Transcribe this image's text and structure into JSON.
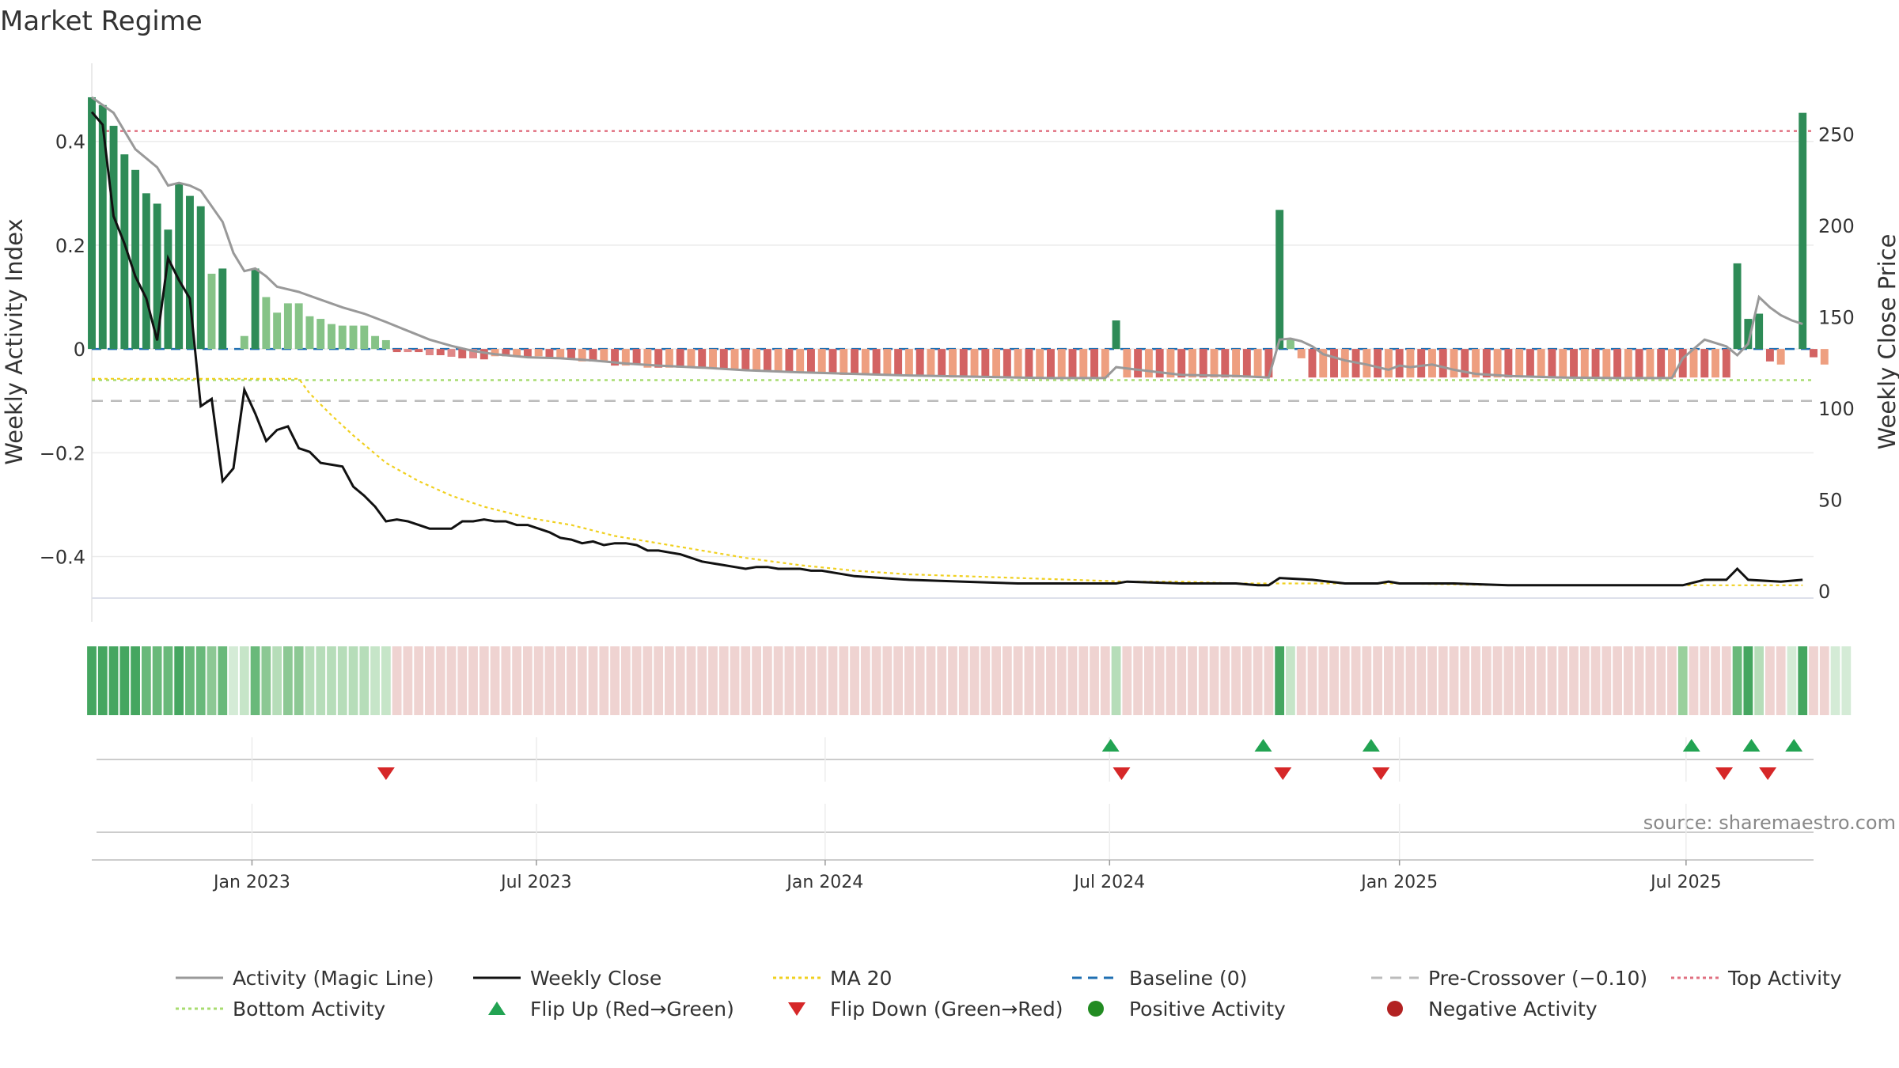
{
  "chart_data": {
    "type": "bar",
    "title": "Market Regime",
    "ylabel_left": "Weekly Activity Index",
    "ylabel_right": "Weekly Close Price",
    "source": "source: sharemaestro.com",
    "y_left_range": [
      -0.48,
      0.52
    ],
    "y_left_ticks": [
      {
        "v": 0.4,
        "label": "0.4"
      },
      {
        "v": 0.2,
        "label": "0.2"
      },
      {
        "v": 0.0,
        "label": "0"
      },
      {
        "v": -0.2,
        "label": "−0.2"
      },
      {
        "v": -0.4,
        "label": "−0.4"
      }
    ],
    "y_right_range": [
      -4,
      280
    ],
    "y_right_ticks": [
      {
        "v": 250,
        "label": "250"
      },
      {
        "v": 200,
        "label": "200"
      },
      {
        "v": 150,
        "label": "150"
      },
      {
        "v": 100,
        "label": "100"
      },
      {
        "v": 50,
        "label": "50"
      },
      {
        "v": 0,
        "label": "0"
      }
    ],
    "x_range": [
      0,
      158
    ],
    "x_ticks": [
      {
        "week": 14.7,
        "label": "Jan 2023"
      },
      {
        "week": 40.8,
        "label": "Jul 2023"
      },
      {
        "week": 67.3,
        "label": "Jan 2024"
      },
      {
        "week": 93.4,
        "label": "Jul 2024"
      },
      {
        "week": 120.0,
        "label": "Jan 2025"
      },
      {
        "week": 146.3,
        "label": "Jul 2025"
      }
    ],
    "reference_lines": {
      "top": 0.42,
      "bottom": -0.06,
      "pre_crossover": -0.1,
      "baseline": 0.0
    },
    "series": [
      {
        "name": "Activity (Magic Line)",
        "color": "#999999",
        "kind": "left"
      },
      {
        "name": "Weekly Close",
        "color": "#111111",
        "kind": "right"
      },
      {
        "name": "MA 20",
        "color": "#f0d020",
        "kind": "right"
      }
    ],
    "strong_threshold": 0.15,
    "colors": {
      "pos_strong": "#2e8b57",
      "pos_weak": "#86c387",
      "neg_strong": "#d36363",
      "neg_weak": "#ee9f80",
      "top_line": "#e07080",
      "bottom_line": "#a8dc70",
      "pre_line": "#bbbbbb",
      "baseline": "#1f6fb2",
      "flip_up": "#22a352",
      "flip_down": "#d62728",
      "positive_dot": "#228b22",
      "negative_dot": "#b22222",
      "grid": "#ebebeb"
    },
    "activity": [
      0.485,
      0.47,
      0.43,
      0.375,
      0.345,
      0.3,
      0.28,
      0.23,
      0.32,
      0.295,
      0.275,
      0.145,
      0.155,
      0.0,
      0.025,
      0.155,
      0.1,
      0.07,
      0.088,
      0.088,
      0.063,
      0.058,
      0.048,
      0.045,
      0.045,
      0.045,
      0.025,
      0.017,
      -0.006,
      -0.006,
      -0.006,
      -0.012,
      -0.012,
      -0.015,
      -0.018,
      -0.018,
      -0.02,
      -0.014,
      -0.014,
      -0.014,
      -0.016,
      -0.014,
      -0.016,
      -0.018,
      -0.018,
      -0.024,
      -0.024,
      -0.024,
      -0.032,
      -0.032,
      -0.03,
      -0.036,
      -0.036,
      -0.036,
      -0.036,
      -0.036,
      -0.036,
      -0.036,
      -0.04,
      -0.04,
      -0.04,
      -0.042,
      -0.042,
      -0.042,
      -0.045,
      -0.045,
      -0.045,
      -0.048,
      -0.048,
      -0.05,
      -0.05,
      -0.05,
      -0.05,
      -0.05,
      -0.052,
      -0.052,
      -0.052,
      -0.052,
      -0.052,
      -0.055,
      -0.055,
      -0.055,
      -0.055,
      -0.055,
      -0.055,
      -0.055,
      -0.055,
      -0.055,
      -0.055,
      -0.055,
      -0.055,
      -0.055,
      -0.055,
      -0.055,
      0.055,
      -0.055,
      -0.055,
      -0.055,
      -0.055,
      -0.055,
      -0.055,
      -0.055,
      -0.055,
      -0.055,
      -0.055,
      -0.055,
      -0.055,
      -0.055,
      -0.055,
      0.268,
      0.02,
      -0.018,
      -0.055,
      -0.055,
      -0.055,
      -0.055,
      -0.055,
      -0.055,
      -0.055,
      -0.055,
      -0.055,
      -0.055,
      -0.055,
      -0.055,
      -0.055,
      -0.055,
      -0.055,
      -0.055,
      -0.055,
      -0.055,
      -0.055,
      -0.055,
      -0.055,
      -0.055,
      -0.055,
      -0.055,
      -0.055,
      -0.055,
      -0.055,
      -0.055,
      -0.055,
      -0.055,
      -0.055,
      -0.055,
      -0.055,
      -0.055,
      -0.055,
      -0.055,
      -0.055,
      -0.055,
      -0.055,
      0.165,
      0.058,
      0.068,
      -0.024,
      -0.03,
      0.0,
      0.455,
      -0.016,
      -0.03,
      0.0,
      0.0
    ],
    "magic_line": [
      [
        0,
        0.485
      ],
      [
        2,
        0.455
      ],
      [
        4,
        0.385
      ],
      [
        6,
        0.35
      ],
      [
        7,
        0.315
      ],
      [
        8,
        0.32
      ],
      [
        9,
        0.315
      ],
      [
        10,
        0.305
      ],
      [
        11,
        0.275
      ],
      [
        12,
        0.245
      ],
      [
        13,
        0.185
      ],
      [
        14,
        0.15
      ],
      [
        15,
        0.155
      ],
      [
        16,
        0.14
      ],
      [
        17,
        0.12
      ],
      [
        19,
        0.11
      ],
      [
        21,
        0.095
      ],
      [
        23,
        0.08
      ],
      [
        25,
        0.068
      ],
      [
        27,
        0.052
      ],
      [
        29,
        0.035
      ],
      [
        31,
        0.018
      ],
      [
        33,
        0.006
      ],
      [
        35,
        -0.004
      ],
      [
        37,
        -0.01
      ],
      [
        40,
        -0.016
      ],
      [
        43,
        -0.018
      ],
      [
        46,
        -0.022
      ],
      [
        49,
        -0.028
      ],
      [
        52,
        -0.032
      ],
      [
        56,
        -0.036
      ],
      [
        60,
        -0.041
      ],
      [
        65,
        -0.045
      ],
      [
        70,
        -0.048
      ],
      [
        75,
        -0.051
      ],
      [
        80,
        -0.053
      ],
      [
        85,
        -0.055
      ],
      [
        88,
        -0.056
      ],
      [
        93,
        -0.056
      ],
      [
        94,
        -0.035
      ],
      [
        96,
        -0.04
      ],
      [
        100,
        -0.05
      ],
      [
        105,
        -0.052
      ],
      [
        107,
        -0.054
      ],
      [
        108,
        -0.055
      ],
      [
        109,
        0.018
      ],
      [
        110,
        0.02
      ],
      [
        111,
        0.015
      ],
      [
        112,
        0.005
      ],
      [
        113,
        -0.01
      ],
      [
        115,
        -0.022
      ],
      [
        117,
        -0.03
      ],
      [
        119,
        -0.04
      ],
      [
        120,
        -0.032
      ],
      [
        121,
        -0.035
      ],
      [
        123,
        -0.03
      ],
      [
        125,
        -0.04
      ],
      [
        127,
        -0.048
      ],
      [
        130,
        -0.052
      ],
      [
        135,
        -0.055
      ],
      [
        140,
        -0.056
      ],
      [
        145,
        -0.056
      ],
      [
        146,
        -0.018
      ],
      [
        148,
        0.018
      ],
      [
        150,
        0.005
      ],
      [
        151,
        -0.012
      ],
      [
        152,
        0.01
      ],
      [
        153,
        0.1
      ],
      [
        154,
        0.08
      ],
      [
        155,
        0.065
      ],
      [
        156,
        0.055
      ],
      [
        157,
        0.048
      ]
    ],
    "weekly_close": [
      [
        0,
        262
      ],
      [
        1,
        255
      ],
      [
        2,
        205
      ],
      [
        3,
        190
      ],
      [
        4,
        172
      ],
      [
        5,
        160
      ],
      [
        6,
        137
      ],
      [
        7,
        182
      ],
      [
        8,
        170
      ],
      [
        9,
        160
      ],
      [
        10,
        101
      ],
      [
        11,
        105
      ],
      [
        12,
        60
      ],
      [
        13,
        67
      ],
      [
        14,
        110
      ],
      [
        15,
        97
      ],
      [
        16,
        82
      ],
      [
        17,
        88
      ],
      [
        18,
        90
      ],
      [
        19,
        78
      ],
      [
        20,
        76
      ],
      [
        21,
        70
      ],
      [
        22,
        69
      ],
      [
        23,
        68
      ],
      [
        24,
        57
      ],
      [
        25,
        52
      ],
      [
        26,
        46
      ],
      [
        27,
        38
      ],
      [
        28,
        39
      ],
      [
        29,
        38
      ],
      [
        30,
        36
      ],
      [
        31,
        34
      ],
      [
        32,
        34
      ],
      [
        33,
        34
      ],
      [
        34,
        38
      ],
      [
        35,
        38
      ],
      [
        36,
        39
      ],
      [
        37,
        38
      ],
      [
        38,
        38
      ],
      [
        39,
        36
      ],
      [
        40,
        36
      ],
      [
        41,
        34
      ],
      [
        42,
        32
      ],
      [
        43,
        29
      ],
      [
        44,
        28
      ],
      [
        45,
        26
      ],
      [
        46,
        27
      ],
      [
        47,
        25
      ],
      [
        48,
        26
      ],
      [
        49,
        26
      ],
      [
        50,
        25
      ],
      [
        51,
        22
      ],
      [
        52,
        22
      ],
      [
        53,
        21
      ],
      [
        54,
        20
      ],
      [
        55,
        18
      ],
      [
        56,
        16
      ],
      [
        57,
        15
      ],
      [
        58,
        14
      ],
      [
        59,
        13
      ],
      [
        60,
        12
      ],
      [
        61,
        13
      ],
      [
        62,
        13
      ],
      [
        63,
        12
      ],
      [
        64,
        12
      ],
      [
        65,
        12
      ],
      [
        66,
        11
      ],
      [
        67,
        11
      ],
      [
        68,
        10
      ],
      [
        70,
        8
      ],
      [
        75,
        6
      ],
      [
        80,
        5
      ],
      [
        85,
        4
      ],
      [
        88,
        4
      ],
      [
        94,
        4
      ],
      [
        95,
        5
      ],
      [
        100,
        4
      ],
      [
        105,
        4
      ],
      [
        107,
        3
      ],
      [
        108,
        3
      ],
      [
        109,
        7
      ],
      [
        112,
        6
      ],
      [
        115,
        4
      ],
      [
        118,
        4
      ],
      [
        119,
        5
      ],
      [
        120,
        4
      ],
      [
        125,
        4
      ],
      [
        130,
        3
      ],
      [
        135,
        3
      ],
      [
        140,
        3
      ],
      [
        145,
        3
      ],
      [
        146,
        3
      ],
      [
        148,
        6
      ],
      [
        150,
        6
      ],
      [
        151,
        12
      ],
      [
        152,
        6
      ],
      [
        155,
        5
      ],
      [
        157,
        6
      ]
    ],
    "ma20": [
      [
        0,
        116
      ],
      [
        19,
        116
      ],
      [
        20,
        108
      ],
      [
        22,
        96
      ],
      [
        24,
        85
      ],
      [
        27,
        70
      ],
      [
        30,
        60
      ],
      [
        33,
        52
      ],
      [
        36,
        46
      ],
      [
        40,
        40
      ],
      [
        44,
        36
      ],
      [
        48,
        30
      ],
      [
        52,
        26
      ],
      [
        56,
        22
      ],
      [
        60,
        18
      ],
      [
        65,
        14
      ],
      [
        70,
        11
      ],
      [
        75,
        9
      ],
      [
        80,
        8
      ],
      [
        85,
        7
      ],
      [
        90,
        6
      ],
      [
        95,
        5
      ],
      [
        100,
        5
      ],
      [
        105,
        4
      ],
      [
        110,
        4
      ],
      [
        120,
        4
      ],
      [
        130,
        3
      ],
      [
        140,
        3
      ],
      [
        145,
        3
      ],
      [
        150,
        3
      ],
      [
        157,
        3
      ]
    ],
    "flip_up_weeks": [
      93.5,
      107.5,
      117.4,
      146.8,
      152.3,
      156.2
    ],
    "flip_down_weeks": [
      27.0,
      94.5,
      109.3,
      118.3,
      149.8,
      153.8
    ],
    "legend": [
      {
        "label": "Activity (Magic Line)",
        "symbol": "line",
        "color": "#999999",
        "dash": ""
      },
      {
        "label": "Weekly Close",
        "symbol": "line",
        "color": "#111111",
        "dash": ""
      },
      {
        "label": "MA 20",
        "symbol": "line",
        "color": "#f0d020",
        "dash": "4 4"
      },
      {
        "label": "Baseline (0)",
        "symbol": "line",
        "color": "#1f6fb2",
        "dash": "12 8"
      },
      {
        "label": "Pre-Crossover (−0.10)",
        "symbol": "line",
        "color": "#bbbbbb",
        "dash": "14 10"
      },
      {
        "label": "Top Activity",
        "symbol": "line",
        "color": "#e07080",
        "dash": "4 4"
      },
      {
        "label": "Bottom Activity",
        "symbol": "line",
        "color": "#a8dc70",
        "dash": "4 4"
      },
      {
        "label": "Flip Up (Red→Green)",
        "symbol": "tri-up",
        "color": "#22a352",
        "dash": ""
      },
      {
        "label": "Flip Down (Green→Red)",
        "symbol": "tri-down",
        "color": "#d62728",
        "dash": ""
      },
      {
        "label": "Positive Activity",
        "symbol": "dot",
        "color": "#228b22",
        "dash": ""
      },
      {
        "label": "Negative Activity",
        "symbol": "dot",
        "color": "#b22222",
        "dash": ""
      }
    ]
  }
}
